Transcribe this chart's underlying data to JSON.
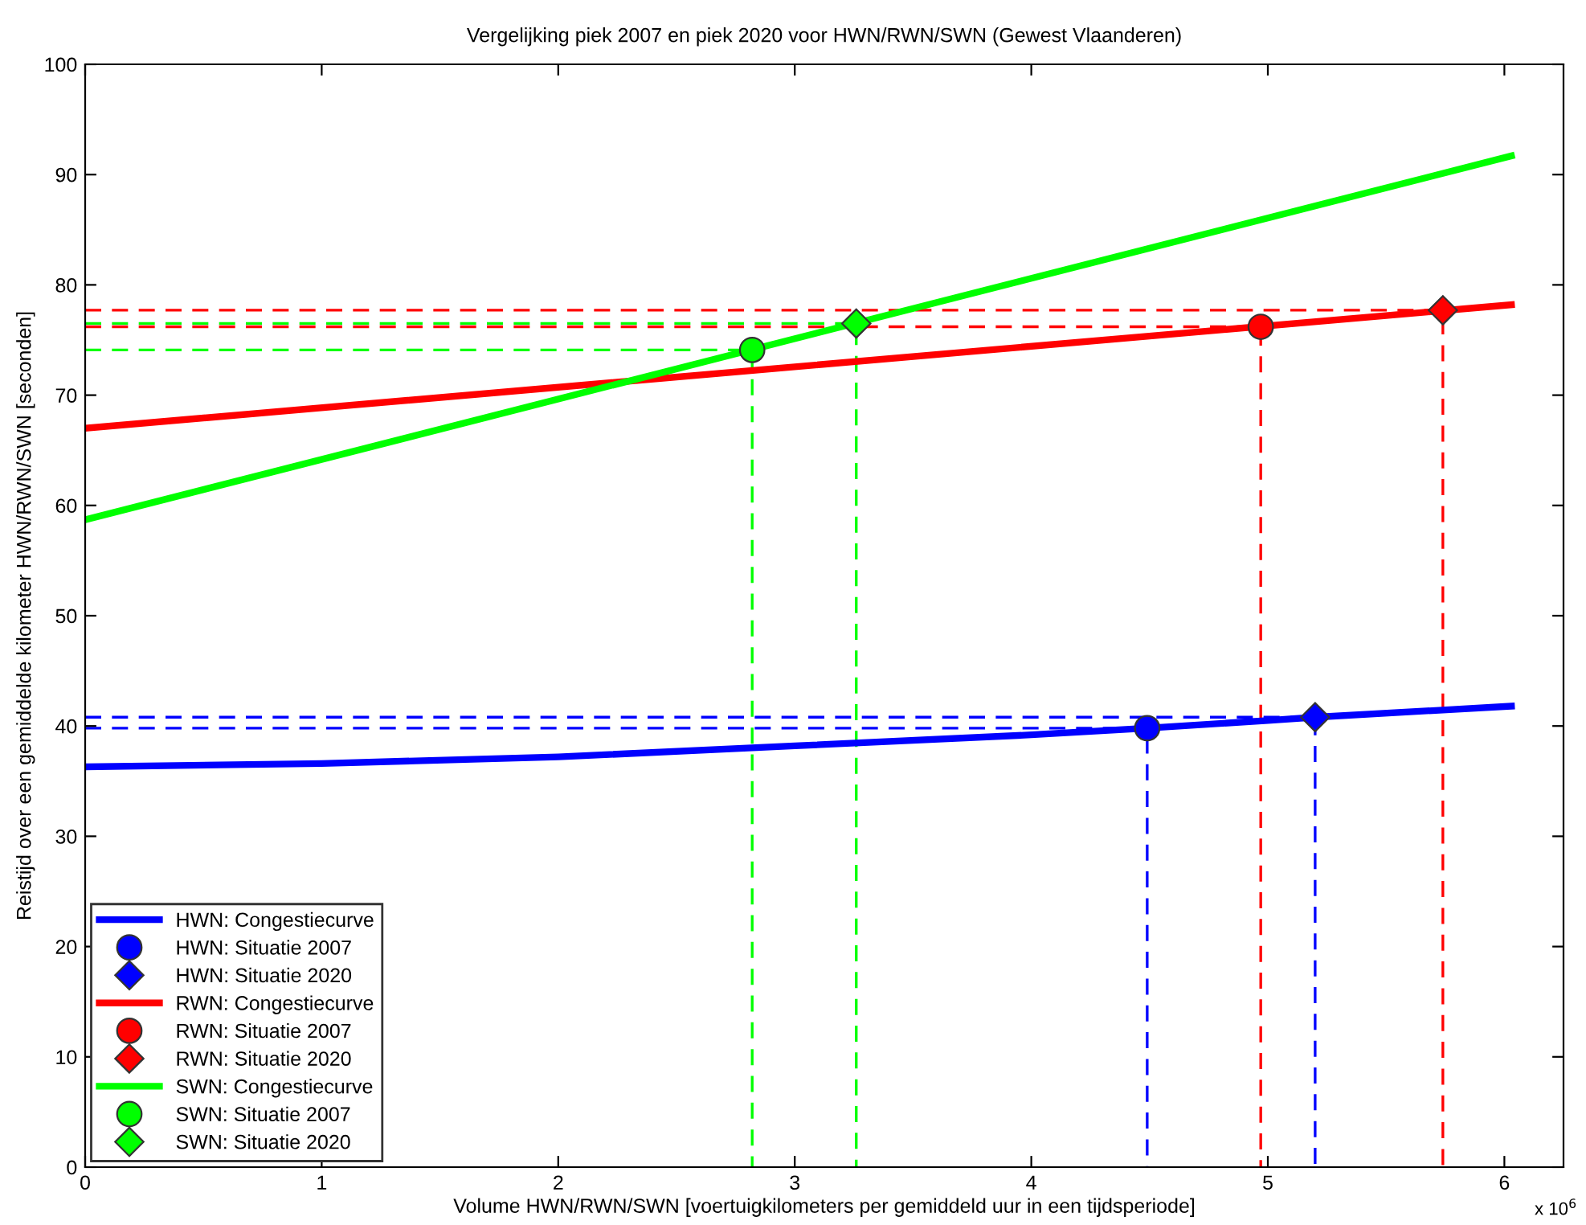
{
  "chart_data": {
    "type": "line",
    "title": "Vergelijking piek 2007 en piek 2020 voor HWN/RWN/SWN (Gewest Vlaanderen)",
    "xlabel": "Volume HWN/RWN/SWN [voertuigkilometers per gemiddeld uur in een tijdsperiode]",
    "ylabel": "Reistijd over een gemiddelde kilometer HWN/RWN/SWN [seconden]",
    "annotations": [
      "x 10$^{6}$"
    ],
    "xlim": [
      0,
      6.25
    ],
    "xticks": [
      0,
      1,
      2,
      3,
      4,
      5,
      6
    ],
    "ylim": [
      0,
      100
    ],
    "yticks": [
      0,
      10,
      20,
      30,
      40,
      50,
      60,
      70,
      80,
      90,
      100
    ],
    "grid": false,
    "legend": "bottom left",
    "series": [
      {
        "name": "HWN: Congestiecurve",
        "color": "#0000ff",
        "x": [
          0,
          1,
          2,
          3,
          4,
          4.49,
          5,
          5.2,
          6.03
        ],
        "values": [
          36.3,
          36.6,
          37.2,
          38.2,
          39.2,
          39.8,
          40.5,
          40.8,
          41.8
        ],
        "marker": "none",
        "line_style": "solid"
      },
      {
        "name": "HWN: Situatie 2007",
        "type": "scatter",
        "color": "#0000ff",
        "x": [
          4.49
        ],
        "values": [
          39.8
        ],
        "marker": "circle"
      },
      {
        "name": "HWN: Situatie 2020",
        "type": "scatter",
        "color": "#0000ff",
        "x": [
          5.2
        ],
        "values": [
          40.8
        ],
        "marker": "diamond"
      },
      {
        "name": "RWN: Congestiecurve",
        "color": "#ff0000",
        "x": [
          0,
          6.03
        ],
        "values": [
          67.0,
          78.2
        ],
        "marker": "none",
        "line_style": "solid"
      },
      {
        "name": "RWN: Situatie 2007",
        "type": "scatter",
        "color": "#ff0000",
        "x": [
          4.97
        ],
        "values": [
          76.2
        ],
        "marker": "circle"
      },
      {
        "name": "RWN: Situatie 2020",
        "type": "scatter",
        "color": "#ff0000",
        "x": [
          5.74
        ],
        "values": [
          77.7
        ],
        "marker": "diamond"
      },
      {
        "name": "SWN: Congestiecurve",
        "color": "#00ff00",
        "x": [
          0,
          6.03
        ],
        "values": [
          58.7,
          91.7
        ],
        "marker": "none",
        "line_style": "solid"
      },
      {
        "name": "SWN: Situatie 2007",
        "type": "scatter",
        "color": "#00ff00",
        "x": [
          2.82
        ],
        "values": [
          74.1
        ],
        "marker": "circle"
      },
      {
        "name": "SWN: Situatie 2020",
        "type": "scatter",
        "color": "#00ff00",
        "x": [
          3.26
        ],
        "values": [
          76.5
        ],
        "marker": "diamond"
      },
      {
        "type": "line",
        "color": "#0000ff",
        "x": [
          0,
          4.49,
          4.49
        ],
        "values": [
          39.8,
          39.8,
          0
        ],
        "marker": "none",
        "line_style": "dashed"
      },
      {
        "type": "line",
        "color": "#0000ff",
        "x": [
          0,
          5.2,
          5.2
        ],
        "values": [
          40.8,
          40.8,
          0
        ],
        "marker": "none",
        "line_style": "dashed"
      },
      {
        "type": "line",
        "color": "#ff0000",
        "x": [
          0,
          4.97,
          4.97
        ],
        "values": [
          76.2,
          76.2,
          0
        ],
        "marker": "none",
        "line_style": "dashed"
      },
      {
        "type": "line",
        "color": "#ff0000",
        "x": [
          0,
          5.74,
          5.74
        ],
        "values": [
          77.7,
          77.7,
          0
        ],
        "marker": "none",
        "line_style": "dashed"
      },
      {
        "type": "line",
        "color": "#00ff00",
        "x": [
          0,
          2.82,
          2.82
        ],
        "values": [
          74.1,
          74.1,
          0
        ],
        "marker": "none",
        "line_style": "dashed"
      },
      {
        "type": "line",
        "color": "#00ff00",
        "x": [
          0,
          3.26,
          3.26
        ],
        "values": [
          76.5,
          76.5,
          0
        ],
        "marker": "none",
        "line_style": "dashed"
      }
    ]
  }
}
